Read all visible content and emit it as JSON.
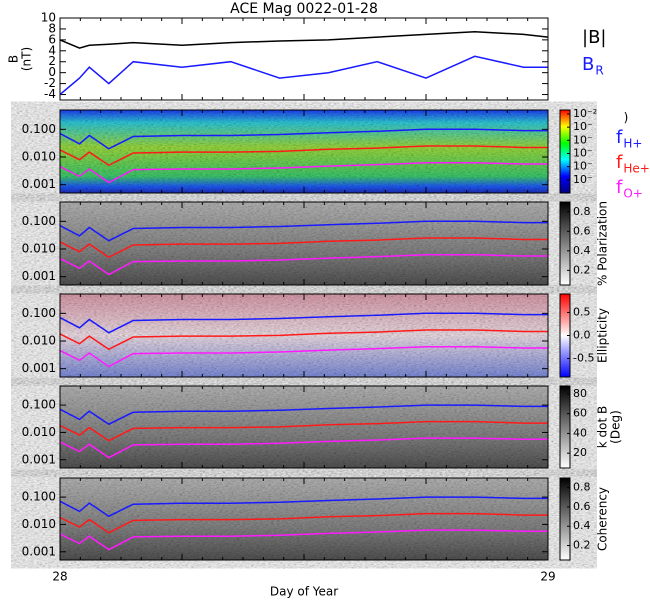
{
  "chart_data": [
    {
      "type": "line",
      "title": "ACE Mag 0022-01-28",
      "ylabel": [
        "B",
        "(nT)"
      ],
      "x": [
        28,
        28.04,
        28.06,
        28.1,
        28.15,
        28.25,
        28.35,
        28.45,
        28.55,
        28.65,
        28.75,
        28.85,
        28.95,
        29
      ],
      "xlim": [
        28,
        29
      ],
      "ylim": [
        -5,
        10
      ],
      "yticks": [
        -4,
        -2,
        0,
        2,
        4,
        6,
        8,
        10
      ],
      "legend": "right",
      "series": [
        {
          "name": "|B|",
          "color": "#000000",
          "values": [
            6,
            4.5,
            5,
            5.2,
            5.5,
            5,
            5.5,
            5.8,
            6,
            6.5,
            7,
            7.5,
            7,
            6.5
          ]
        },
        {
          "name": "B",
          "name_sub": "R",
          "color": "#1a1aff",
          "values": [
            -4,
            -1,
            1,
            -2,
            2,
            1,
            2,
            -1,
            0,
            2,
            -1,
            3,
            1,
            1
          ]
        }
      ]
    },
    {
      "type": "spectrogram",
      "colormap": "rainbow",
      "ylog": true,
      "clog": true,
      "clabel": ")",
      "x": [
        28,
        28.04,
        28.06,
        28.1,
        28.15,
        28.25,
        28.35,
        28.45,
        28.55,
        28.65,
        28.75,
        28.85,
        28.95,
        29
      ],
      "xlim": [
        28,
        29
      ],
      "ylim": [
        0.0005,
        0.5
      ],
      "yticks": [
        0.001,
        {
          "value": 0.01,
          "label": "0.010"
        },
        {
          "value": 0.1,
          "label": "0.100"
        }
      ],
      "clim": [
        1e-08,
        0.02
      ],
      "cticks": [
        {
          "value": 0.01,
          "label": "10⁻²"
        },
        {
          "value": 0.001,
          "label": "10⁻"
        },
        {
          "value": 0.0001,
          "label": "10⁻"
        },
        {
          "value": 1e-05,
          "label": "10⁻"
        },
        {
          "value": 1e-06,
          "label": "10⁻"
        },
        {
          "value": 1e-07,
          "label": "10⁻"
        }
      ],
      "legend": "right",
      "series": [
        {
          "name": "f",
          "name_sub": "H+",
          "color": "#1a1aff",
          "values": [
            0.07,
            0.03,
            0.06,
            0.02,
            0.055,
            0.06,
            0.06,
            0.065,
            0.075,
            0.085,
            0.1,
            0.1,
            0.09,
            0.09
          ]
        },
        {
          "name": "f",
          "name_sub": "He+",
          "color": "#ff1a1a",
          "values": [
            0.018,
            0.008,
            0.015,
            0.005,
            0.014,
            0.015,
            0.015,
            0.016,
            0.019,
            0.021,
            0.025,
            0.025,
            0.022,
            0.022
          ]
        },
        {
          "name": "f",
          "name_sub": "O+",
          "color": "#ff1aff",
          "values": [
            0.0045,
            0.002,
            0.0037,
            0.0012,
            0.0035,
            0.0037,
            0.0037,
            0.004,
            0.0047,
            0.0053,
            0.0062,
            0.0062,
            0.0056,
            0.0056
          ]
        }
      ]
    },
    {
      "type": "spectrogram",
      "colormap": "gray",
      "ylog": true,
      "clabel": "% Polarization",
      "x": [
        28,
        28.04,
        28.06,
        28.1,
        28.15,
        28.25,
        28.35,
        28.45,
        28.55,
        28.65,
        28.75,
        28.85,
        28.95,
        29
      ],
      "xlim": [
        28,
        29
      ],
      "ylim": [
        0.0005,
        0.5
      ],
      "yticks": [
        0.001,
        {
          "value": 0.01,
          "label": "0.010"
        },
        {
          "value": 0.1,
          "label": "0.100"
        }
      ],
      "clim": [
        0.05,
        0.9
      ],
      "cticks": [
        0.2,
        0.4,
        0.6,
        0.8
      ],
      "series": [
        {
          "color": "#1a1aff",
          "values": [
            0.07,
            0.03,
            0.06,
            0.02,
            0.055,
            0.06,
            0.06,
            0.065,
            0.075,
            0.085,
            0.1,
            0.1,
            0.09,
            0.09
          ]
        },
        {
          "color": "#ff1a1a",
          "values": [
            0.018,
            0.008,
            0.015,
            0.005,
            0.014,
            0.015,
            0.015,
            0.016,
            0.019,
            0.021,
            0.025,
            0.025,
            0.022,
            0.022
          ]
        },
        {
          "color": "#ff1aff",
          "values": [
            0.0045,
            0.002,
            0.0037,
            0.0012,
            0.0035,
            0.0037,
            0.0037,
            0.004,
            0.0047,
            0.0053,
            0.0062,
            0.0062,
            0.0056,
            0.0056
          ]
        }
      ]
    },
    {
      "type": "spectrogram",
      "colormap": "bwr",
      "ylog": true,
      "clabel": "Ellipticity",
      "x": [
        28,
        28.04,
        28.06,
        28.1,
        28.15,
        28.25,
        28.35,
        28.45,
        28.55,
        28.65,
        28.75,
        28.85,
        28.95,
        29
      ],
      "xlim": [
        28,
        29
      ],
      "ylim": [
        0.0005,
        0.5
      ],
      "yticks": [
        0.001,
        {
          "value": 0.01,
          "label": "0.010"
        },
        {
          "value": 0.1,
          "label": "0.100"
        }
      ],
      "clim": [
        -0.9,
        0.9
      ],
      "cticks": [
        -0.5,
        {
          "value": 0,
          "label": "0.0"
        },
        0.5
      ],
      "series": [
        {
          "color": "#1a1aff",
          "values": [
            0.07,
            0.03,
            0.06,
            0.02,
            0.055,
            0.06,
            0.06,
            0.065,
            0.075,
            0.085,
            0.1,
            0.1,
            0.09,
            0.09
          ]
        },
        {
          "color": "#ff1a1a",
          "values": [
            0.018,
            0.008,
            0.015,
            0.005,
            0.014,
            0.015,
            0.015,
            0.016,
            0.019,
            0.021,
            0.025,
            0.025,
            0.022,
            0.022
          ]
        },
        {
          "color": "#ff1aff",
          "values": [
            0.0045,
            0.002,
            0.0037,
            0.0012,
            0.0035,
            0.0037,
            0.0037,
            0.004,
            0.0047,
            0.0053,
            0.0062,
            0.0062,
            0.0056,
            0.0056
          ]
        }
      ]
    },
    {
      "type": "spectrogram",
      "colormap": "gray",
      "ylog": true,
      "clabel": "k dot B",
      "clabel2": "(Deg)",
      "x": [
        28,
        28.04,
        28.06,
        28.1,
        28.15,
        28.25,
        28.35,
        28.45,
        28.55,
        28.65,
        28.75,
        28.85,
        28.95,
        29
      ],
      "xlim": [
        28,
        29
      ],
      "ylim": [
        0.0005,
        0.5
      ],
      "yticks": [
        0.001,
        {
          "value": 0.01,
          "label": "0.010"
        },
        {
          "value": 0.1,
          "label": "0.100"
        }
      ],
      "clim": [
        5,
        88
      ],
      "cticks": [
        20,
        40,
        60,
        80
      ],
      "series": [
        {
          "color": "#1a1aff",
          "values": [
            0.07,
            0.03,
            0.06,
            0.02,
            0.055,
            0.06,
            0.06,
            0.065,
            0.075,
            0.085,
            0.1,
            0.1,
            0.09,
            0.09
          ]
        },
        {
          "color": "#ff1a1a",
          "values": [
            0.018,
            0.008,
            0.015,
            0.005,
            0.014,
            0.015,
            0.015,
            0.016,
            0.019,
            0.021,
            0.025,
            0.025,
            0.022,
            0.022
          ]
        },
        {
          "color": "#ff1aff",
          "values": [
            0.0045,
            0.002,
            0.0037,
            0.0012,
            0.0035,
            0.0037,
            0.0037,
            0.004,
            0.0047,
            0.0053,
            0.0062,
            0.0062,
            0.0056,
            0.0056
          ]
        }
      ]
    },
    {
      "type": "spectrogram",
      "colormap": "gray",
      "ylog": true,
      "clabel": "Coherency",
      "xlabel": "Day of Year",
      "x": [
        28,
        28.04,
        28.06,
        28.1,
        28.15,
        28.25,
        28.35,
        28.45,
        28.55,
        28.65,
        28.75,
        28.85,
        28.95,
        29
      ],
      "xlim": [
        28,
        29
      ],
      "xticks": [
        28,
        29
      ],
      "ylim": [
        0.0005,
        0.5
      ],
      "yticks": [
        0.001,
        {
          "value": 0.01,
          "label": "0.010"
        },
        {
          "value": 0.1,
          "label": "0.100"
        }
      ],
      "clim": [
        0.05,
        0.9
      ],
      "cticks": [
        0.2,
        0.4,
        0.6,
        0.8
      ],
      "series": [
        {
          "color": "#1a1aff",
          "values": [
            0.07,
            0.03,
            0.06,
            0.02,
            0.055,
            0.06,
            0.06,
            0.065,
            0.075,
            0.085,
            0.1,
            0.1,
            0.09,
            0.09
          ]
        },
        {
          "color": "#ff1a1a",
          "values": [
            0.018,
            0.008,
            0.015,
            0.005,
            0.014,
            0.015,
            0.015,
            0.016,
            0.019,
            0.021,
            0.025,
            0.025,
            0.022,
            0.022
          ]
        },
        {
          "color": "#ff1aff",
          "values": [
            0.0045,
            0.002,
            0.0037,
            0.0012,
            0.0035,
            0.0037,
            0.0037,
            0.004,
            0.0047,
            0.0053,
            0.0062,
            0.0062,
            0.0056,
            0.0056
          ]
        }
      ]
    }
  ]
}
